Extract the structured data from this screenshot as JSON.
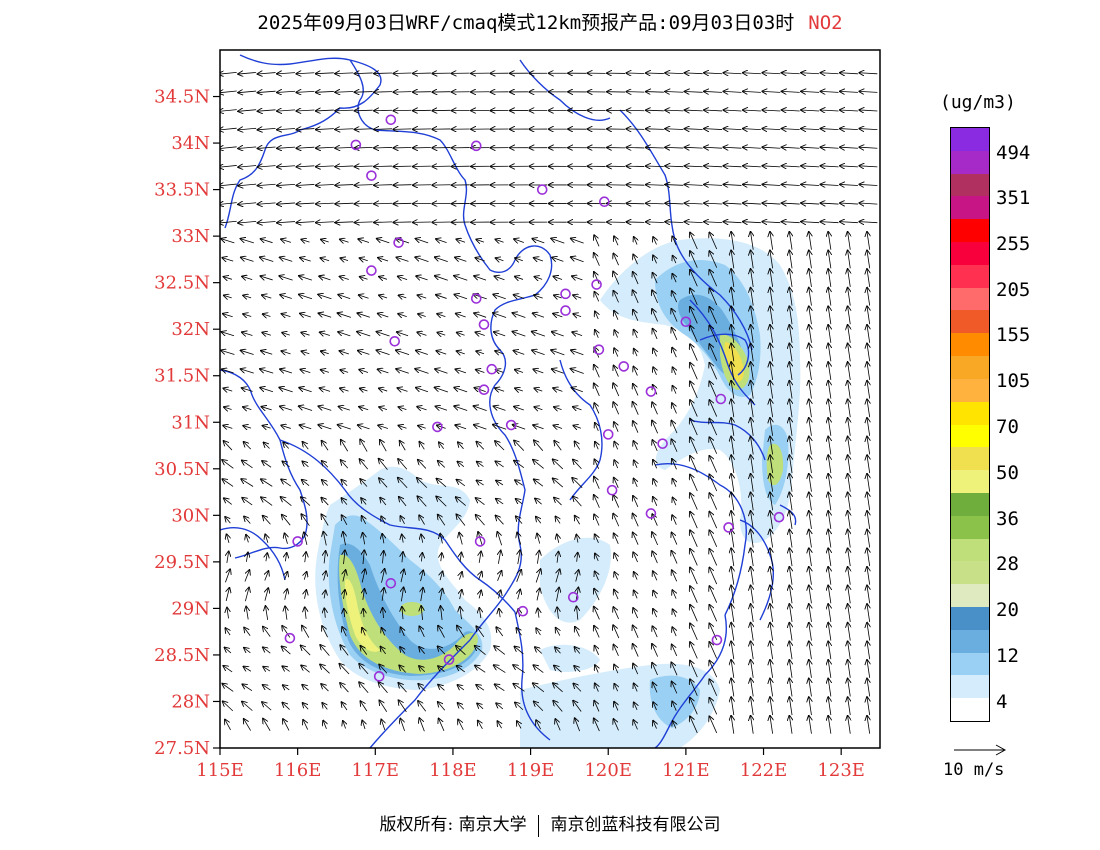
{
  "title": {
    "main": "2025年09月03日WRF/cmaq模式12km预报产品:09月03日03时",
    "species": "NO2"
  },
  "map": {
    "lon_range": [
      115,
      123.5
    ],
    "lat_range": [
      27.5,
      35
    ],
    "lat_ticks": [
      {
        "value": 34.5,
        "label": "34.5N"
      },
      {
        "value": 34,
        "label": "34N"
      },
      {
        "value": 33.5,
        "label": "33.5N"
      },
      {
        "value": 33,
        "label": "33N"
      },
      {
        "value": 32.5,
        "label": "32.5N"
      },
      {
        "value": 32,
        "label": "32N"
      },
      {
        "value": 31.5,
        "label": "31.5N"
      },
      {
        "value": 31,
        "label": "31N"
      },
      {
        "value": 30.5,
        "label": "30.5N"
      },
      {
        "value": 30,
        "label": "30N"
      },
      {
        "value": 29.5,
        "label": "29.5N"
      },
      {
        "value": 29,
        "label": "29N"
      },
      {
        "value": 28.5,
        "label": "28.5N"
      },
      {
        "value": 28,
        "label": "28N"
      },
      {
        "value": 27.5,
        "label": "27.5N"
      }
    ],
    "lon_ticks": [
      {
        "value": 115,
        "label": "115E"
      },
      {
        "value": 116,
        "label": "116E"
      },
      {
        "value": 117,
        "label": "117E"
      },
      {
        "value": 118,
        "label": "118E"
      },
      {
        "value": 119,
        "label": "119E"
      },
      {
        "value": 120,
        "label": "120E"
      },
      {
        "value": 121,
        "label": "121E"
      },
      {
        "value": 122,
        "label": "122E"
      },
      {
        "value": 123,
        "label": "123E"
      }
    ],
    "stations": [
      [
        117.2,
        34.25
      ],
      [
        116.75,
        33.98
      ],
      [
        118.3,
        33.97
      ],
      [
        116.95,
        33.65
      ],
      [
        119.15,
        33.5
      ],
      [
        119.95,
        33.37
      ],
      [
        117.3,
        32.93
      ],
      [
        116.95,
        32.63
      ],
      [
        119.85,
        32.48
      ],
      [
        118.3,
        32.33
      ],
      [
        119.45,
        32.38
      ],
      [
        119.45,
        32.2
      ],
      [
        118.4,
        32.05
      ],
      [
        121.0,
        32.08
      ],
      [
        117.25,
        31.87
      ],
      [
        119.88,
        31.78
      ],
      [
        118.5,
        31.57
      ],
      [
        120.2,
        31.6
      ],
      [
        118.4,
        31.35
      ],
      [
        120.55,
        31.33
      ],
      [
        121.45,
        31.25
      ],
      [
        117.8,
        30.95
      ],
      [
        118.75,
        30.97
      ],
      [
        120.0,
        30.87
      ],
      [
        120.7,
        30.77
      ],
      [
        120.05,
        30.27
      ],
      [
        120.55,
        30.02
      ],
      [
        121.55,
        29.87
      ],
      [
        122.2,
        29.98
      ],
      [
        116.0,
        29.72
      ],
      [
        118.35,
        29.72
      ],
      [
        117.2,
        29.27
      ],
      [
        119.55,
        29.12
      ],
      [
        118.9,
        28.97
      ],
      [
        115.9,
        28.68
      ],
      [
        121.4,
        28.66
      ],
      [
        117.95,
        28.45
      ],
      [
        117.05,
        28.27
      ]
    ],
    "colors": {
      "station": "#9b30d9",
      "boundary": "#1f3fd6",
      "frame": "#000000",
      "labels": "#e23a3a"
    }
  },
  "legend": {
    "unit": "(ug/m3)",
    "bins": [
      {
        "color": "#8a2be2"
      },
      {
        "color": "#a52ac8"
      },
      {
        "color": "#b03060"
      },
      {
        "color": "#c71585"
      },
      {
        "color": "#ff0000"
      },
      {
        "color": "#f7003c"
      },
      {
        "color": "#ff3050"
      },
      {
        "color": "#ff6a6a"
      },
      {
        "color": "#f05a28"
      },
      {
        "color": "#ff8c00"
      },
      {
        "color": "#f9a825"
      },
      {
        "color": "#ffb23e"
      },
      {
        "color": "#ffe400"
      },
      {
        "color": "#ffff00"
      },
      {
        "color": "#f0e050"
      },
      {
        "color": "#eef27a"
      },
      {
        "color": "#6fae3c"
      },
      {
        "color": "#8bc34a"
      },
      {
        "color": "#bedf7a"
      },
      {
        "color": "#c8e088"
      },
      {
        "color": "#dfeac0"
      },
      {
        "color": "#4a90c8"
      },
      {
        "color": "#6aaee0"
      },
      {
        "color": "#9ad0f4"
      },
      {
        "color": "#d4ecfb"
      },
      {
        "color": "#ffffff"
      }
    ],
    "labels": [
      {
        "text": "494",
        "top": 142
      },
      {
        "text": "351",
        "top": 187
      },
      {
        "text": "255",
        "top": 233
      },
      {
        "text": "205",
        "top": 279
      },
      {
        "text": "155",
        "top": 324
      },
      {
        "text": "105",
        "top": 370
      },
      {
        "text": "70",
        "top": 416
      },
      {
        "text": "50",
        "top": 462
      },
      {
        "text": "36",
        "top": 508
      },
      {
        "text": "28",
        "top": 553
      },
      {
        "text": "20",
        "top": 599
      },
      {
        "text": "12",
        "top": 645
      },
      {
        "text": "4",
        "top": 691
      }
    ],
    "vector_ref": "10 m/s"
  },
  "footer": {
    "copyright": "版权所有: 南京大学",
    "partner": "南京创蓝科技有限公司"
  }
}
